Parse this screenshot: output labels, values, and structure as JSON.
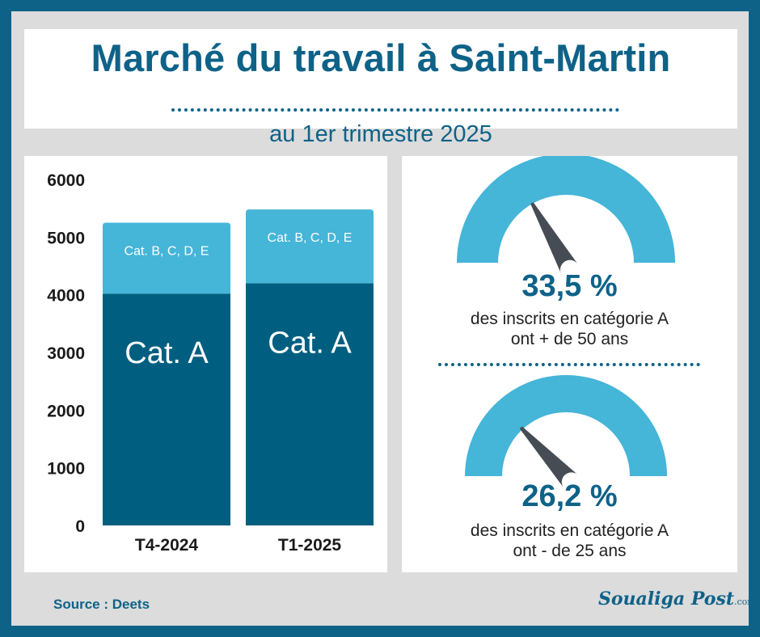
{
  "header": {
    "title": "Marché du travail à Saint-Martin",
    "subtitle": "au 1er trimestre 2025"
  },
  "colors": {
    "frame": "#0e6288",
    "dark_blue": "#005f80",
    "light_blue": "#45b5d8",
    "needle": "#464c54"
  },
  "chart_data": {
    "type": "bar",
    "stacked": true,
    "categories": [
      "T4-2024",
      "T1-2025"
    ],
    "series": [
      {
        "name": "Cat. A",
        "values": [
          4020,
          4200
        ],
        "color": "#005f80"
      },
      {
        "name": "Cat. B, C, D, E",
        "values": [
          1230,
          1280
        ],
        "color": "#45b5d8"
      }
    ],
    "ylim": [
      0,
      6000
    ],
    "yticks": [
      0,
      1000,
      2000,
      3000,
      4000,
      5000,
      6000
    ],
    "xlabel": "",
    "ylabel": "",
    "legend": "none",
    "grid": false
  },
  "gauges": [
    {
      "value_label": "33,5 %",
      "fraction": 0.335,
      "caption_line1": "des inscrits en catégorie A",
      "caption_line2": "ont + de 50 ans"
    },
    {
      "value_label": "26,2 %",
      "fraction": 0.262,
      "caption_line1": "des inscrits en catégorie A",
      "caption_line2": "ont - de 25 ans"
    }
  ],
  "footer": {
    "source": "Source : Deets",
    "logo_text": "Soualiga Post",
    "logo_domain": ".com"
  }
}
